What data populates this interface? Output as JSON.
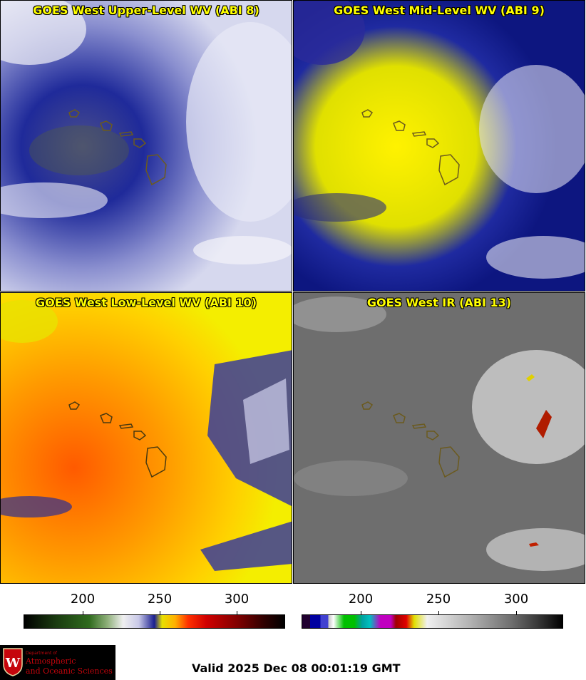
{
  "panels": {
    "upper": {
      "title": "GOES West Upper-Level WV (ABI 8)"
    },
    "mid": {
      "title": "GOES West Mid-Level WV (ABI 9)"
    },
    "low": {
      "title": "GOES West Low-Level WV (ABI 10)"
    },
    "ir": {
      "title": "GOES West IR (ABI 13)"
    }
  },
  "colorbar_wv": {
    "tick_labels": [
      "200",
      "250",
      "300"
    ]
  },
  "colorbar_ir": {
    "tick_labels": [
      "200",
      "250",
      "300"
    ]
  },
  "logo": {
    "line1": "Department of",
    "line2": "Atmospheric",
    "line3": "and Oceanic Sciences",
    "shield_letter": "W"
  },
  "valid_time": "Valid 2025 Dec 08 00:01:19 GMT",
  "colors": {
    "title_text": "#ffff00",
    "logo_red": "#c5050c",
    "coast_outline": "#6b5a1e"
  }
}
